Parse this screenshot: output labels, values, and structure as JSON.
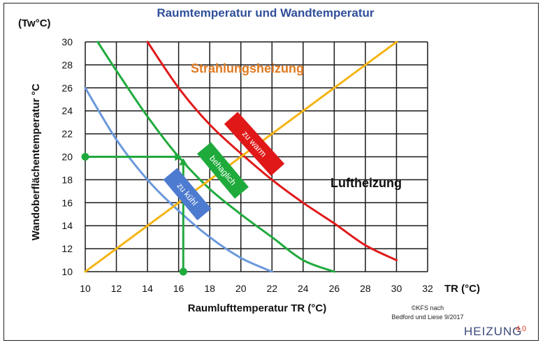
{
  "chart_data": {
    "type": "line",
    "title": "Raumtemperatur und Wandtemperatur",
    "xlabel": "Raumlufttemperatur TR (°C)",
    "x_axis_end_label": "TR (°C)",
    "ylabel": "Wandoberflächentemperatur  °C",
    "y_unit_label": "(Tw°C)",
    "xlim": [
      10,
      32
    ],
    "ylim": [
      10,
      30
    ],
    "x_ticks": [
      10,
      12,
      14,
      16,
      18,
      20,
      22,
      24,
      26,
      28,
      30,
      32
    ],
    "y_ticks": [
      10,
      12,
      14,
      16,
      18,
      20,
      22,
      24,
      26,
      28,
      30
    ],
    "grid": true,
    "series": [
      {
        "name": "",
        "color": "#6a98dc",
        "x": [
          10,
          12,
          14,
          16,
          18,
          20,
          22
        ],
        "y": [
          26,
          21.5,
          18,
          15.3,
          13,
          11.2,
          10
        ]
      },
      {
        "name": "",
        "color": "#1faa3c",
        "x": [
          10.8,
          12,
          14,
          16,
          18,
          20,
          22,
          24,
          26
        ],
        "y": [
          30,
          27.5,
          23.5,
          20,
          17.2,
          15,
          13,
          11,
          10
        ]
      },
      {
        "name": "",
        "color": "#e01818",
        "x": [
          14,
          16,
          18,
          20,
          22,
          24,
          26,
          28,
          30
        ],
        "y": [
          30,
          26,
          22.8,
          20.3,
          18,
          16,
          14.2,
          12.3,
          11
        ]
      },
      {
        "name": "",
        "color": "#f5b412",
        "x": [
          10,
          30
        ],
        "y": [
          10,
          30
        ]
      }
    ],
    "marker_line": {
      "color": "#1faa3c",
      "start": [
        10,
        20
      ],
      "corner": [
        16.3,
        20
      ],
      "end": [
        16.3,
        10
      ]
    },
    "annotations": [
      {
        "text": "Strahlungsheizung",
        "color": "#e07a20"
      },
      {
        "text": "Luftheizung",
        "color": "#111111"
      }
    ],
    "bands": [
      {
        "text": "zu kühl",
        "color": "#4d7bcf"
      },
      {
        "text": "behaglich",
        "color": "#1faa3c"
      },
      {
        "text": "zu warm",
        "color": "#e01818"
      }
    ],
    "credit_lines": [
      "©KFS nach",
      "Bedford und Liese 9/2017"
    ],
    "logo_text": "HEIZUNG",
    "logo_suffix": "4.0"
  }
}
